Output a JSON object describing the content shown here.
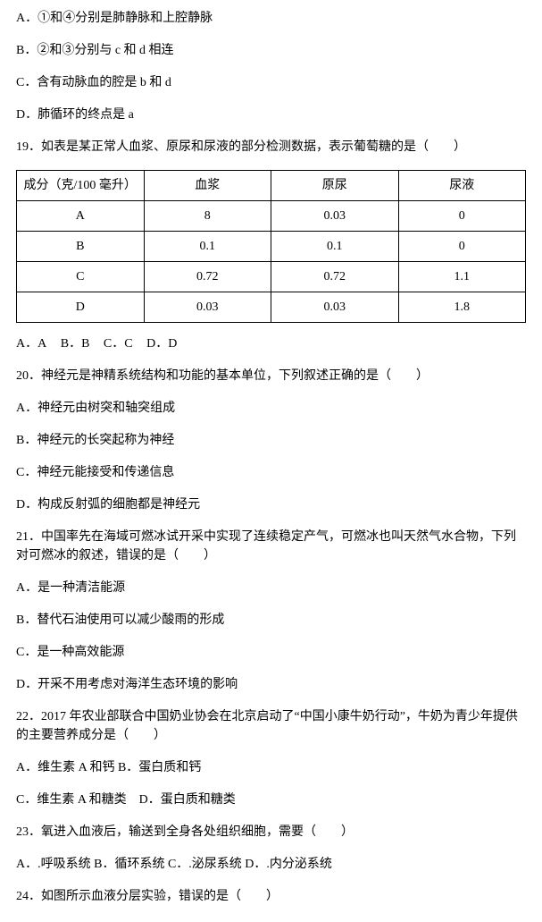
{
  "optA": "A．①和④分别是肺静脉和上腔静脉",
  "optB": "B．②和③分别与 c 和 d 相连",
  "optC": "C．含有动脉血的腔是 b 和 d",
  "optD": "D．肺循环的终点是 a",
  "q19": "19．如表是某正常人血浆、原尿和尿液的部分检测数据，表示葡萄糖的是（　　）",
  "table": {
    "headers": [
      "成分（克/100 毫升）",
      "血浆",
      "原尿",
      "尿液"
    ],
    "rows": [
      [
        "A",
        "8",
        "0.03",
        "0"
      ],
      [
        "B",
        "0.1",
        "0.1",
        "0"
      ],
      [
        "C",
        "0.72",
        "0.72",
        "1.1"
      ],
      [
        "D",
        "0.03",
        "0.03",
        "1.8"
      ]
    ]
  },
  "q19ans": {
    "a": "A．A",
    "b": "B．B",
    "c": "C．C",
    "d": "D．D"
  },
  "q20": "20．神经元是神精系统结构和功能的基本单位，下列叙述正确的是（　　）",
  "q20a": "A．神经元由树突和轴突组成",
  "q20b": "B．神经元的长突起称为神经",
  "q20c": "C．神经元能接受和传递信息",
  "q20d": "D．构成反射弧的细胞都是神经元",
  "q21": "21．中国率先在海域可燃冰试开采中实现了连续稳定产气，可燃冰也叫天然气水合物，下列对可燃冰的叙述，错误的是（　　）",
  "q21a": "A．是一种清洁能源",
  "q21b": "B．替代石油使用可以减少酸雨的形成",
  "q21c": "C．是一种高效能源",
  "q21d": "D．开采不用考虑对海洋生态环境的影响",
  "q22": "22．2017 年农业部联合中国奶业协会在北京启动了“中国小康牛奶行动”，牛奶为青少年提供的主要营养成分是（　　）",
  "q22ab": "A．维生素 A 和钙 B．蛋白质和钙",
  "q22cd": "C．维生素 A 和糖类　D．蛋白质和糖类",
  "q23": "23．氧进入血液后，输送到全身各处组织细胞，需要（　　）",
  "q23opts": "A．.呼吸系统 B．循环系统 C．.泌尿系统 D．.内分泌系统",
  "q24": "24．如图所示血液分层实验，错误的是（　　）"
}
